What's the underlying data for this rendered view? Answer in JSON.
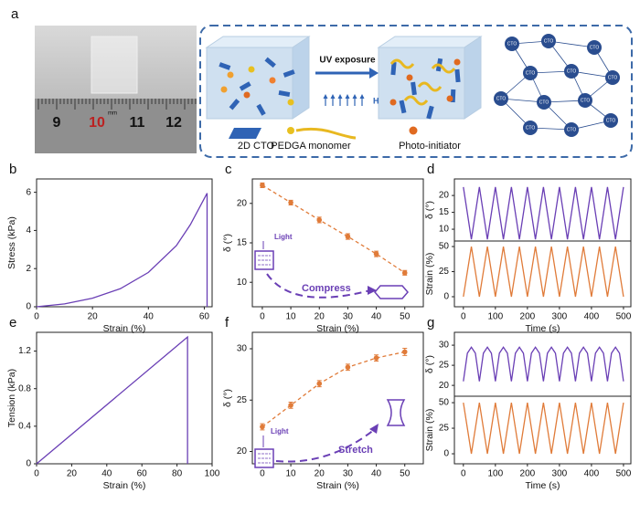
{
  "figure": {
    "panel": "a",
    "ruler_numbers": [
      "9",
      "10",
      "11",
      "12"
    ],
    "ruler_unit": "mm",
    "uv_label": "UV exposure",
    "field_label": "H",
    "legend": [
      "2D CTO",
      "PEDGA monomer",
      "Photo-initiator"
    ],
    "network_label": "CTO"
  },
  "chart_data": [
    {
      "type": "line",
      "panel": "b",
      "xlabel": "Strain (%)",
      "ylabel": "Stress (kPa)",
      "x": [
        0,
        10,
        20,
        30,
        40,
        50,
        55,
        61,
        61
      ],
      "series": [
        {
          "color": "#6a3fb5",
          "values": [
            0,
            0.15,
            0.45,
            0.95,
            1.8,
            3.2,
            4.3,
            5.95,
            0
          ]
        }
      ],
      "xlim": [
        0,
        62.8
      ],
      "xticks": [
        0,
        20,
        40,
        60
      ],
      "ylim": [
        0,
        6.7
      ],
      "yticks": [
        0,
        2,
        4,
        6
      ]
    },
    {
      "type": "line",
      "panel": "c",
      "xlabel": "Strain (%)",
      "ylabel": "δ (°)",
      "x": [
        0,
        10,
        20,
        30,
        40,
        50
      ],
      "series": [
        {
          "color": "#e07b39",
          "dash": true,
          "markers": true,
          "values": [
            22.3,
            20.1,
            17.9,
            15.8,
            13.6,
            11.2
          ],
          "errors": [
            0.3,
            0.3,
            0.35,
            0.35,
            0.35,
            0.3
          ]
        }
      ],
      "xlim": [
        -3.5,
        56.5
      ],
      "xticks": [
        0,
        10,
        20,
        30,
        40,
        50
      ],
      "ylim": [
        6.9,
        23.1
      ],
      "yticks": [
        10,
        15,
        20
      ],
      "annotations": [
        "Light",
        "Compress"
      ]
    },
    {
      "type": "line",
      "panel": "d",
      "ylabel": "δ (°)",
      "x": [
        0,
        25,
        50,
        75,
        100,
        125,
        150,
        175,
        200,
        225,
        250,
        275,
        300,
        325,
        350,
        375,
        400,
        425,
        450,
        475,
        500
      ],
      "series": [
        {
          "color": "#6a3fb5",
          "values": [
            22.5,
            7,
            22.5,
            7,
            22.5,
            7,
            22.5,
            7,
            22.5,
            7,
            22.5,
            7,
            22.5,
            7,
            22.5,
            7,
            22.5,
            7,
            22.5,
            7,
            22.5
          ]
        }
      ],
      "xlim": [
        -28,
        523
      ],
      "ylim": [
        6.5,
        24.9
      ],
      "yticks": [
        10,
        15,
        20
      ]
    },
    {
      "type": "line",
      "xlabel": "Time (s)",
      "ylabel": "Strain (%)",
      "x": [
        0,
        25,
        50,
        75,
        100,
        125,
        150,
        175,
        200,
        225,
        250,
        275,
        300,
        325,
        350,
        375,
        400,
        425,
        450,
        475,
        500
      ],
      "series": [
        {
          "color": "#e07b39",
          "values": [
            0,
            50,
            0,
            50,
            0,
            50,
            0,
            50,
            0,
            50,
            0,
            50,
            0,
            50,
            0,
            50,
            0,
            50,
            0,
            50,
            0
          ]
        }
      ],
      "xlim": [
        -28,
        523
      ],
      "xticks": [
        0,
        100,
        200,
        300,
        400,
        500
      ],
      "ylim": [
        -10,
        55.5
      ],
      "yticks": [
        0,
        25,
        50
      ]
    },
    {
      "type": "line",
      "panel": "e",
      "xlabel": "Strain (%)",
      "ylabel": "Tension (kPa)",
      "x": [
        0,
        86,
        86
      ],
      "series": [
        {
          "color": "#6a3fb5",
          "values": [
            0,
            1.35,
            0
          ]
        }
      ],
      "xlim": [
        0,
        100
      ],
      "xticks": [
        0,
        20,
        40,
        60,
        80,
        100
      ],
      "ylim": [
        0,
        1.4
      ],
      "yticks": [
        0,
        0.4,
        0.8,
        1.2
      ]
    },
    {
      "type": "line",
      "panel": "f",
      "xlabel": "Strain (%)",
      "ylabel": "δ (°)",
      "x": [
        0,
        10,
        20,
        30,
        40,
        50
      ],
      "series": [
        {
          "color": "#e07b39",
          "dash": true,
          "markers": true,
          "values": [
            22.4,
            24.5,
            26.6,
            28.2,
            29.1,
            29.7
          ],
          "errors": [
            0.3,
            0.3,
            0.3,
            0.3,
            0.3,
            0.35
          ]
        }
      ],
      "xlim": [
        -3.5,
        56.5
      ],
      "xticks": [
        0,
        10,
        20,
        30,
        40,
        50
      ],
      "ylim": [
        18.8,
        31.6
      ],
      "yticks": [
        20,
        25,
        30
      ],
      "annotations": [
        "Light",
        "Stretch"
      ]
    },
    {
      "type": "line",
      "panel": "g",
      "ylabel": "δ (°)",
      "x": [
        0,
        12.5,
        25,
        37.5,
        50,
        62.5,
        75,
        87.5,
        100,
        112.5,
        125,
        137.5,
        150,
        162.5,
        175,
        187.5,
        200,
        212.5,
        225,
        237.5,
        250,
        262.5,
        275,
        287.5,
        300,
        312.5,
        325,
        337.5,
        350,
        362.5,
        375,
        387.5,
        400,
        412.5,
        425,
        437.5,
        450,
        462.5,
        475,
        487.5,
        500
      ],
      "series": [
        {
          "color": "#6a3fb5",
          "values": [
            21,
            28,
            29.5,
            28,
            21,
            28,
            29.5,
            28,
            21,
            28,
            29.5,
            28,
            21,
            28,
            29.5,
            28,
            21,
            28,
            29.5,
            28,
            21,
            28,
            29.5,
            28,
            21,
            28,
            29.5,
            28,
            21,
            28,
            29.5,
            28,
            21,
            28,
            29.5,
            28,
            21,
            28,
            29.5,
            28,
            21
          ]
        }
      ],
      "xlim": [
        -28,
        523
      ],
      "ylim": [
        17.3,
        33.2
      ],
      "yticks": [
        20,
        25,
        30
      ]
    },
    {
      "type": "line",
      "xlabel": "Time (s)",
      "ylabel": "Strain (%)",
      "x": [
        0,
        25,
        50,
        75,
        100,
        125,
        150,
        175,
        200,
        225,
        250,
        275,
        300,
        325,
        350,
        375,
        400,
        425,
        450,
        475,
        500
      ],
      "series": [
        {
          "color": "#e07b39",
          "values": [
            50,
            0,
            50,
            0,
            50,
            0,
            50,
            0,
            50,
            0,
            50,
            0,
            50,
            0,
            50,
            0,
            50,
            0,
            50,
            0,
            50
          ]
        }
      ],
      "xlim": [
        -28,
        523
      ],
      "xticks": [
        0,
        100,
        200,
        300,
        400,
        500
      ],
      "ylim": [
        -9.8,
        56.3
      ],
      "yticks": [
        0,
        25,
        50
      ]
    }
  ]
}
